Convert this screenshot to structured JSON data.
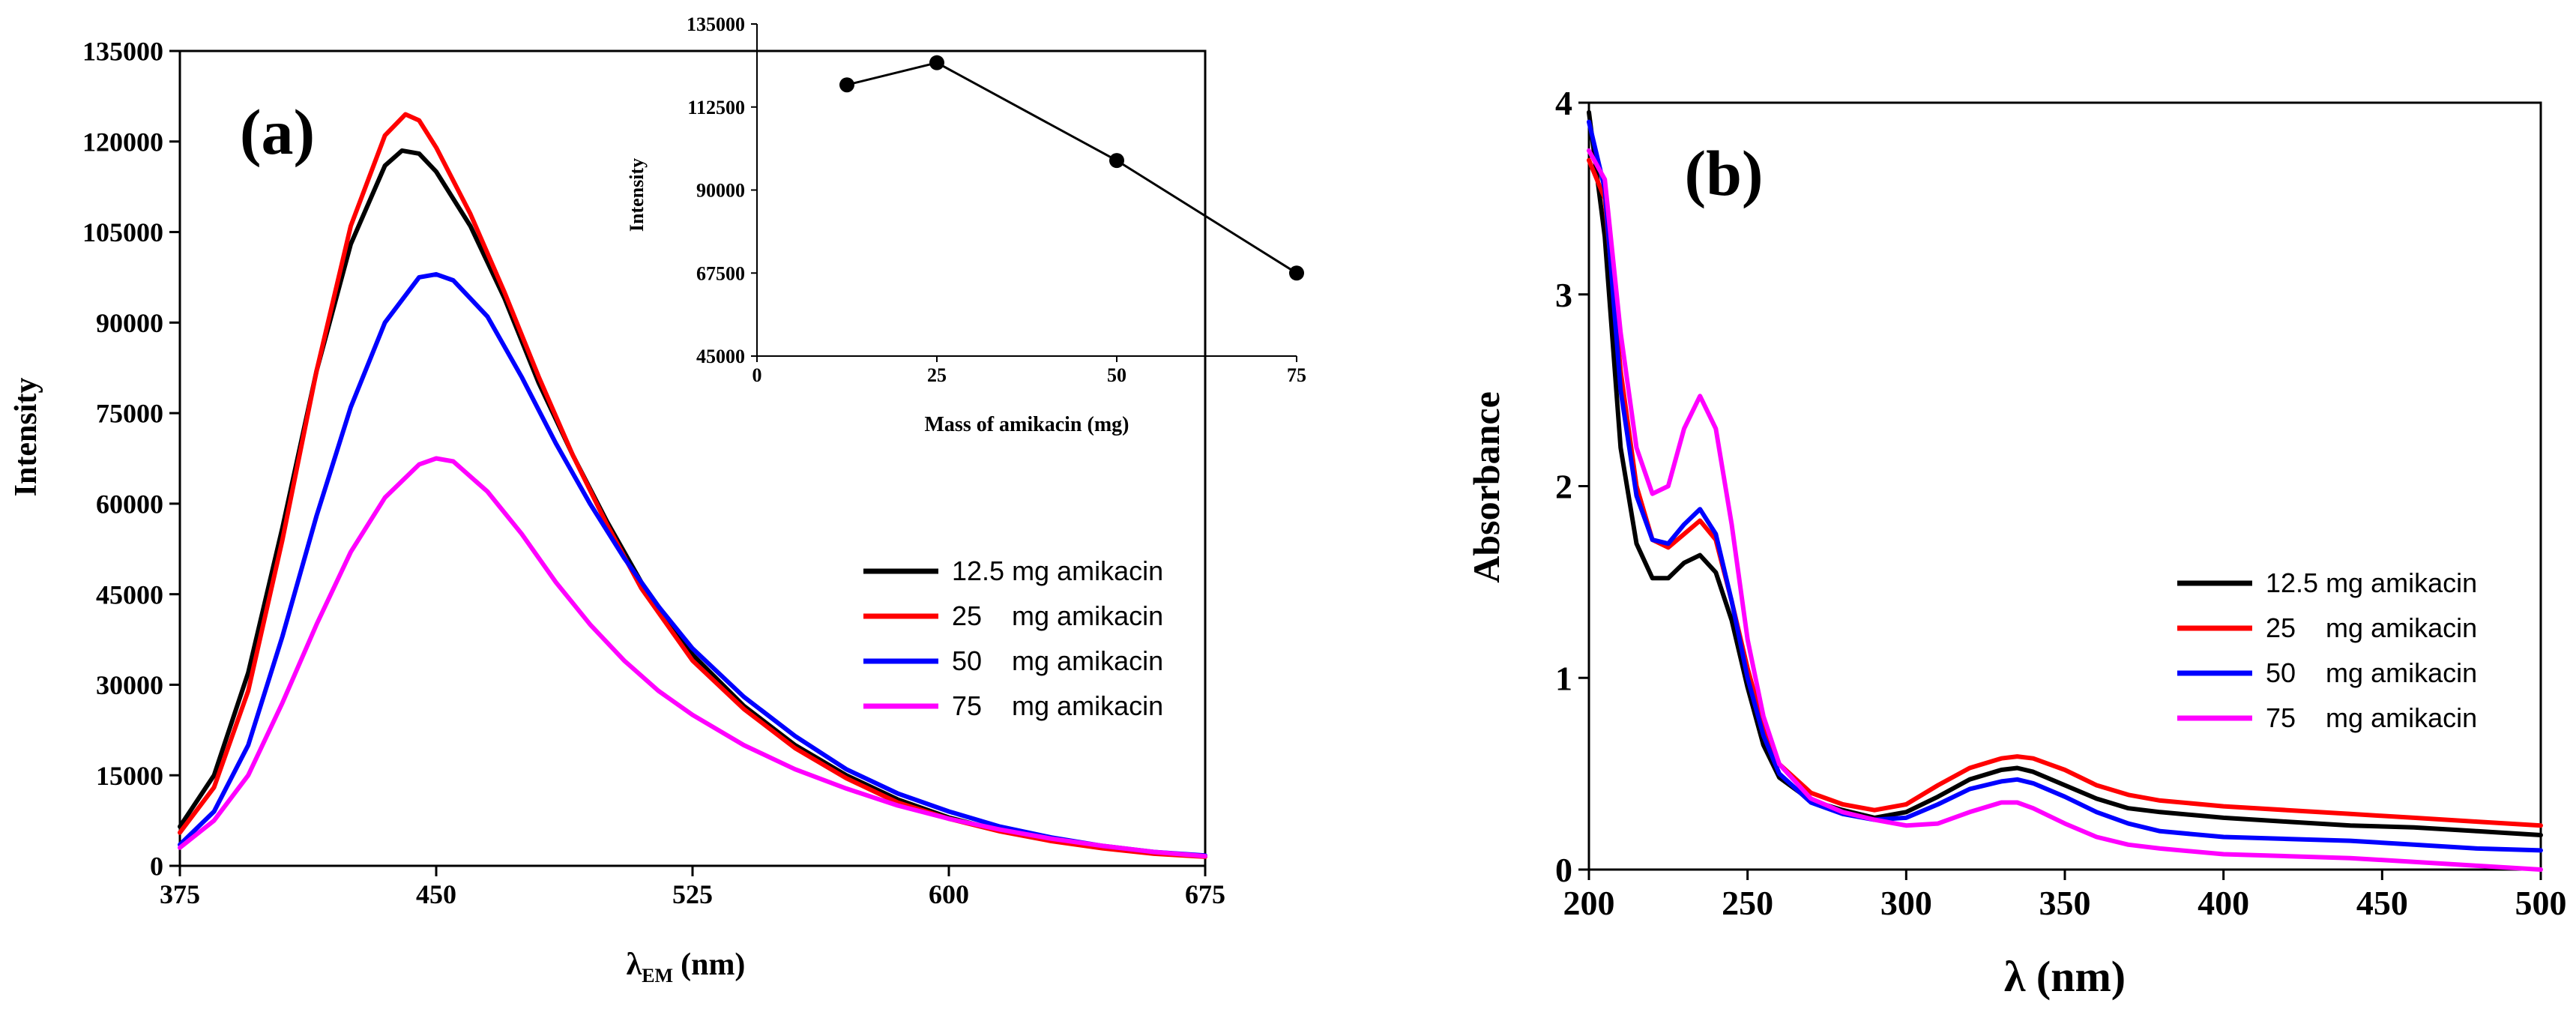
{
  "chart_data": [
    {
      "type": "line",
      "panel_label": "(a)",
      "title": "",
      "xlabel_main": "λ",
      "xlabel_sub": "EM",
      "xlabel_unit": "(nm)",
      "ylabel": "Intensity",
      "xlim": [
        375,
        675
      ],
      "ylim": [
        0,
        135000
      ],
      "xticks": [
        375,
        450,
        525,
        600,
        675
      ],
      "yticks": [
        0,
        15000,
        30000,
        45000,
        60000,
        75000,
        90000,
        105000,
        120000,
        135000
      ],
      "grid": false,
      "legend": "center-right",
      "series": [
        {
          "name": "12.5 mg amikacin",
          "color": "#000000",
          "x": [
            375,
            385,
            395,
            405,
            415,
            425,
            435,
            440,
            445,
            450,
            460,
            470,
            480,
            490,
            500,
            510,
            525,
            540,
            555,
            570,
            585,
            600,
            615,
            630,
            645,
            660,
            675
          ],
          "y": [
            6500,
            15000,
            32000,
            56000,
            82000,
            103000,
            116000,
            118500,
            118000,
            115000,
            106000,
            94000,
            80000,
            68000,
            57000,
            47000,
            35000,
            26500,
            20000,
            15000,
            11000,
            8000,
            5800,
            4200,
            3000,
            2100,
            1600
          ]
        },
        {
          "name": "25    mg amikacin",
          "color": "#ff0000",
          "x": [
            375,
            385,
            395,
            405,
            415,
            425,
            435,
            441,
            445,
            450,
            460,
            470,
            480,
            490,
            500,
            510,
            525,
            540,
            555,
            570,
            585,
            600,
            615,
            630,
            645,
            660,
            675
          ],
          "y": [
            5500,
            13000,
            29000,
            54000,
            82000,
            106000,
            121000,
            124500,
            123500,
            119000,
            108000,
            95000,
            81000,
            68000,
            56500,
            46000,
            34000,
            26000,
            19500,
            14500,
            10500,
            7800,
            5700,
            4100,
            2900,
            2000,
            1500
          ]
        },
        {
          "name": "50    mg amikacin",
          "color": "#0000ff",
          "x": [
            375,
            385,
            395,
            405,
            415,
            425,
            435,
            445,
            450,
            455,
            465,
            475,
            485,
            495,
            505,
            515,
            525,
            540,
            555,
            570,
            585,
            600,
            615,
            630,
            645,
            660,
            675
          ],
          "y": [
            3500,
            9000,
            20000,
            38000,
            58000,
            76000,
            90000,
            97500,
            98000,
            97000,
            91000,
            81000,
            70000,
            60000,
            51000,
            43000,
            36000,
            28000,
            21500,
            16000,
            12000,
            9000,
            6500,
            4700,
            3300,
            2300,
            1700
          ]
        },
        {
          "name": "75    mg amikacin",
          "color": "#ff00ff",
          "x": [
            375,
            385,
            395,
            405,
            415,
            425,
            435,
            445,
            450,
            455,
            465,
            475,
            485,
            495,
            505,
            515,
            525,
            540,
            555,
            570,
            585,
            600,
            615,
            630,
            645,
            660,
            675
          ],
          "y": [
            3000,
            7500,
            15000,
            27000,
            40000,
            52000,
            61000,
            66500,
            67500,
            67000,
            62000,
            55000,
            47000,
            40000,
            34000,
            29000,
            25000,
            20000,
            16000,
            12800,
            10000,
            7800,
            6000,
            4500,
            3300,
            2300,
            1600
          ]
        }
      ]
    },
    {
      "type": "scatter",
      "panel_label": "inset",
      "title": "",
      "xlabel": "Mass of amikacin  (mg)",
      "ylabel": "Intensity",
      "xlim": [
        0,
        75
      ],
      "ylim": [
        45000,
        135000
      ],
      "xticks": [
        0,
        25,
        50,
        75
      ],
      "yticks": [
        45000,
        67500,
        90000,
        112500,
        135000
      ],
      "series": [
        {
          "name": "Intensity",
          "color": "#000000",
          "x": [
            12.5,
            25,
            50,
            75
          ],
          "y": [
            118500,
            124500,
            98000,
            67500
          ]
        }
      ]
    },
    {
      "type": "line",
      "panel_label": "(b)",
      "title": "",
      "xlabel": "λ (nm)",
      "ylabel": "Absorbance",
      "xlim": [
        200,
        500
      ],
      "ylim": [
        0,
        4
      ],
      "xticks": [
        200,
        250,
        300,
        350,
        400,
        450,
        500
      ],
      "yticks": [
        0,
        1,
        2,
        3,
        4
      ],
      "grid": false,
      "legend": "center-right",
      "series": [
        {
          "name": "12.5 mg amikacin",
          "color": "#000000",
          "x": [
            200,
            205,
            210,
            215,
            220,
            225,
            230,
            235,
            240,
            245,
            250,
            255,
            260,
            270,
            280,
            290,
            300,
            310,
            320,
            330,
            335,
            340,
            350,
            360,
            370,
            380,
            400,
            420,
            440,
            460,
            480,
            500
          ],
          "y": [
            3.95,
            3.3,
            2.2,
            1.7,
            1.52,
            1.52,
            1.6,
            1.64,
            1.55,
            1.3,
            0.95,
            0.65,
            0.48,
            0.36,
            0.31,
            0.27,
            0.3,
            0.38,
            0.47,
            0.52,
            0.53,
            0.51,
            0.44,
            0.37,
            0.32,
            0.3,
            0.27,
            0.25,
            0.23,
            0.22,
            0.2,
            0.18
          ]
        },
        {
          "name": "25    mg amikacin",
          "color": "#ff0000",
          "x": [
            200,
            205,
            210,
            215,
            220,
            225,
            230,
            235,
            240,
            245,
            250,
            255,
            260,
            270,
            280,
            290,
            300,
            310,
            320,
            330,
            335,
            340,
            350,
            360,
            370,
            380,
            400,
            420,
            440,
            460,
            480,
            500
          ],
          "y": [
            3.7,
            3.5,
            2.6,
            2.0,
            1.72,
            1.68,
            1.75,
            1.82,
            1.72,
            1.4,
            1.05,
            0.75,
            0.55,
            0.4,
            0.34,
            0.31,
            0.34,
            0.44,
            0.53,
            0.58,
            0.59,
            0.58,
            0.52,
            0.44,
            0.39,
            0.36,
            0.33,
            0.31,
            0.29,
            0.27,
            0.25,
            0.23
          ]
        },
        {
          "name": "50    mg amikacin",
          "color": "#0000ff",
          "x": [
            200,
            205,
            210,
            215,
            220,
            225,
            230,
            235,
            240,
            245,
            250,
            255,
            260,
            270,
            280,
            290,
            300,
            310,
            320,
            330,
            335,
            340,
            350,
            360,
            370,
            380,
            400,
            420,
            440,
            460,
            480,
            500
          ],
          "y": [
            3.9,
            3.55,
            2.5,
            1.95,
            1.72,
            1.7,
            1.8,
            1.88,
            1.75,
            1.4,
            1.0,
            0.7,
            0.5,
            0.35,
            0.29,
            0.26,
            0.27,
            0.34,
            0.42,
            0.46,
            0.47,
            0.45,
            0.38,
            0.3,
            0.24,
            0.2,
            0.17,
            0.16,
            0.15,
            0.13,
            0.11,
            0.1
          ]
        },
        {
          "name": "75    mg amikacin",
          "color": "#ff00ff",
          "x": [
            200,
            205,
            210,
            215,
            220,
            225,
            230,
            235,
            240,
            245,
            250,
            255,
            260,
            270,
            280,
            290,
            300,
            310,
            320,
            330,
            335,
            340,
            350,
            360,
            370,
            380,
            400,
            420,
            440,
            460,
            480,
            500
          ],
          "y": [
            3.75,
            3.6,
            2.8,
            2.2,
            1.96,
            2.0,
            2.3,
            2.47,
            2.3,
            1.8,
            1.2,
            0.8,
            0.55,
            0.37,
            0.3,
            0.26,
            0.23,
            0.24,
            0.3,
            0.35,
            0.35,
            0.32,
            0.24,
            0.17,
            0.13,
            0.11,
            0.08,
            0.07,
            0.06,
            0.04,
            0.02,
            0.0
          ]
        }
      ]
    }
  ]
}
